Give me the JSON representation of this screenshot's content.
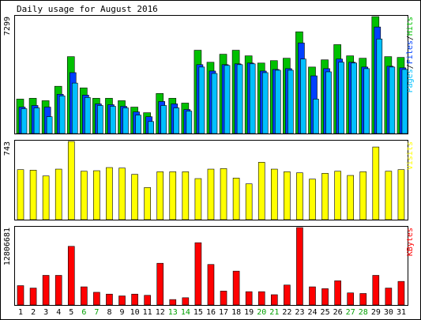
{
  "title": "Daily usage for August 2016",
  "colors": {
    "background": "#ffffff",
    "panel_border": "#000000",
    "hits": "#00c000",
    "files": "#0040ff",
    "pages": "#00c0ff",
    "visits": "#ffff00",
    "kbytes": "#ff0000",
    "day_weekday": "#000000",
    "day_weekend": "#00a000"
  },
  "chart_data": [
    {
      "type": "bar",
      "title": "Daily usage for August 2016",
      "ylabel_parts": [
        {
          "text": "Pages",
          "color": "#00c0ff"
        },
        {
          "text": "/",
          "color": "#000000"
        },
        {
          "text": "Files",
          "color": "#0040ff"
        },
        {
          "text": "/",
          "color": "#000000"
        },
        {
          "text": "Hits",
          "color": "#00c000"
        }
      ],
      "ymax_label": "7299",
      "ylim": [
        0,
        7299
      ],
      "categories": [
        "1",
        "2",
        "3",
        "4",
        "5",
        "6",
        "7",
        "8",
        "9",
        "10",
        "11",
        "12",
        "13",
        "14",
        "15",
        "16",
        "17",
        "18",
        "19",
        "20",
        "21",
        "22",
        "23",
        "24",
        "25",
        "26",
        "27",
        "28",
        "29",
        "30",
        "31"
      ],
      "weekend_days": [
        "6",
        "7",
        "13",
        "14",
        "20",
        "21",
        "27",
        "28"
      ],
      "series": [
        {
          "name": "Hits",
          "color": "#00c000",
          "values": [
            2150,
            2200,
            2050,
            2950,
            4800,
            2850,
            2200,
            2200,
            2050,
            1650,
            1300,
            2500,
            2200,
            1900,
            5200,
            4450,
            4950,
            5200,
            4850,
            4400,
            4550,
            4700,
            6350,
            4150,
            4600,
            5550,
            4850,
            4700,
            7299,
            4800,
            4750
          ]
        },
        {
          "name": "Files",
          "color": "#0040ff",
          "values": [
            1650,
            1750,
            1650,
            2450,
            3800,
            2400,
            1850,
            1800,
            1700,
            1350,
            1050,
            2000,
            1850,
            1500,
            4300,
            3900,
            4300,
            4350,
            4400,
            3900,
            4000,
            4050,
            5650,
            3600,
            4050,
            4650,
            4450,
            4150,
            6650,
            4200,
            4100
          ]
        },
        {
          "name": "Pages",
          "color": "#00c0ff",
          "values": [
            1550,
            1600,
            1050,
            2350,
            3150,
            2250,
            1750,
            1700,
            1600,
            1150,
            750,
            1750,
            1600,
            1400,
            4150,
            3750,
            4250,
            4300,
            4350,
            3800,
            3950,
            3950,
            4650,
            2150,
            3850,
            4450,
            4400,
            4050,
            5900,
            4150,
            4000
          ]
        }
      ]
    },
    {
      "type": "bar",
      "ylabel": "Visits",
      "ymax_label": "743",
      "ylim": [
        0,
        743
      ],
      "series": [
        {
          "name": "Visits",
          "color": "#ffff00",
          "values": [
            475,
            470,
            415,
            480,
            743,
            460,
            465,
            495,
            490,
            430,
            305,
            455,
            455,
            455,
            390,
            480,
            485,
            395,
            340,
            545,
            480,
            455,
            445,
            385,
            440,
            460,
            420,
            455,
            690,
            460,
            475
          ]
        }
      ]
    },
    {
      "type": "bar",
      "ylabel": "KBytes",
      "ymax_label": "12806681",
      "ylim": [
        0,
        12806681
      ],
      "series": [
        {
          "name": "KBytes",
          "color": "#ff0000",
          "values": [
            3200000,
            2800000,
            4900000,
            4900000,
            9700000,
            3000000,
            2100000,
            1800000,
            1500000,
            1800000,
            1600000,
            6900000,
            900000,
            1200000,
            10300000,
            6700000,
            2300000,
            5600000,
            2200000,
            2200000,
            1700000,
            3300000,
            12806681,
            3000000,
            2700000,
            4000000,
            2000000,
            1900000,
            4900000,
            2800000,
            3900000
          ]
        }
      ]
    }
  ]
}
